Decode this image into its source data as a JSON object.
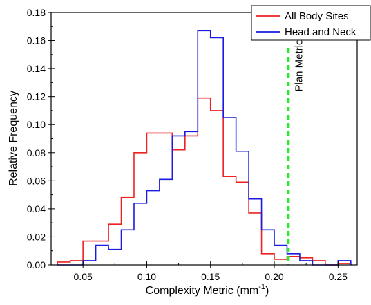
{
  "chart_data": {
    "type": "histogram",
    "xlabel": "Complexity Metric (mm",
    "xlabel_sup": "-1",
    "xlabel_close": ")",
    "ylabel": "Relative Frequency",
    "xlim": [
      0.025,
      0.265
    ],
    "ylim": [
      0,
      0.18
    ],
    "x_ticks": [
      "0.05",
      "0.10",
      "0.15",
      "0.20",
      "0.25"
    ],
    "x_tick_values": [
      0.05,
      0.1,
      0.15,
      0.2,
      0.25
    ],
    "y_ticks": [
      "0.00",
      "0.02",
      "0.04",
      "0.06",
      "0.08",
      "0.10",
      "0.12",
      "0.14",
      "0.16",
      "0.18"
    ],
    "y_tick_values": [
      0.0,
      0.02,
      0.04,
      0.06,
      0.08,
      0.1,
      0.12,
      0.14,
      0.16,
      0.18
    ],
    "bin_edges": [
      0.03,
      0.04,
      0.05,
      0.06,
      0.07,
      0.08,
      0.09,
      0.1,
      0.11,
      0.12,
      0.13,
      0.14,
      0.15,
      0.16,
      0.17,
      0.18,
      0.19,
      0.2,
      0.21,
      0.22,
      0.23,
      0.24,
      0.25,
      0.26
    ],
    "series": [
      {
        "name": "All Body Sites",
        "color": "#ee2222",
        "values": [
          0.002,
          0.003,
          0.017,
          0.017,
          0.029,
          0.048,
          0.08,
          0.094,
          0.094,
          0.082,
          0.092,
          0.119,
          0.11,
          0.063,
          0.059,
          0.037,
          0.008,
          0.004,
          0.006,
          0.005,
          0.003,
          0.0,
          0.001
        ]
      },
      {
        "name": "Head and Neck",
        "color": "#1a1ae0",
        "values": [
          0.0,
          0.0,
          0.003,
          0.014,
          0.011,
          0.025,
          0.044,
          0.053,
          0.061,
          0.092,
          0.095,
          0.167,
          0.162,
          0.105,
          0.081,
          0.047,
          0.025,
          0.014,
          0.008,
          0.003,
          0.0,
          0.0,
          0.003
        ]
      }
    ],
    "annotations": [
      {
        "label": "Plan Metric",
        "x": 0.211,
        "color": "#22ee22",
        "style": "dashed"
      }
    ],
    "legend_position": "top-right",
    "grid": false
  }
}
